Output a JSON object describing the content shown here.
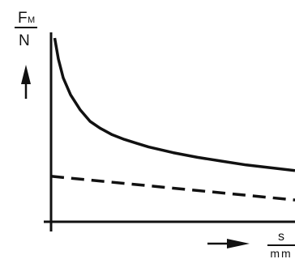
{
  "chart_data": {
    "type": "line",
    "title": "",
    "ylabel": {
      "symbol": "F",
      "subscript": "M",
      "unit": "N"
    },
    "xlabel": {
      "symbol": "s",
      "unit": "mm"
    },
    "xlim": [
      0,
      10
    ],
    "ylim": [
      0,
      10
    ],
    "grid": false,
    "legend": "none",
    "ticks": "none",
    "series": [
      {
        "style": "solid",
        "color": "#111111",
        "x": [
          0.15,
          0.3,
          0.5,
          0.8,
          1.2,
          1.6,
          2.0,
          2.5,
          3.0,
          3.5,
          4.0,
          5.0,
          6.0,
          7.0,
          8.0,
          9.0,
          10.0
        ],
        "y": [
          9.7,
          8.6,
          7.6,
          6.7,
          5.9,
          5.3,
          4.95,
          4.6,
          4.35,
          4.15,
          3.95,
          3.65,
          3.4,
          3.2,
          3.0,
          2.85,
          2.7
        ]
      },
      {
        "style": "dashed",
        "color": "#111111",
        "x": [
          0.0,
          10.0
        ],
        "y": [
          2.4,
          1.15
        ]
      }
    ]
  }
}
